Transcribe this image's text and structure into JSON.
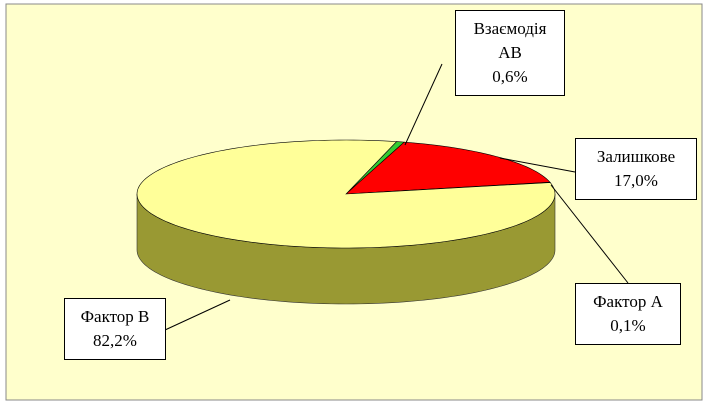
{
  "chart_data": {
    "type": "pie3d",
    "categories": [
      "Взаємодія AB",
      "Залишкове",
      "Фактор А",
      "Фактор В"
    ],
    "values": [
      0.6,
      17.0,
      0.1,
      82.2
    ],
    "value_labels": [
      "0,6%",
      "17,0%",
      "0,1%",
      "82,2%"
    ],
    "colors": [
      "#33cc33",
      "#ff0000",
      "#3366ff",
      "#ffff99"
    ],
    "side_colors": [
      "#1f8a1f",
      "#aa0000",
      "#2244aa",
      "#999933"
    ],
    "background": "#ffffcc"
  }
}
